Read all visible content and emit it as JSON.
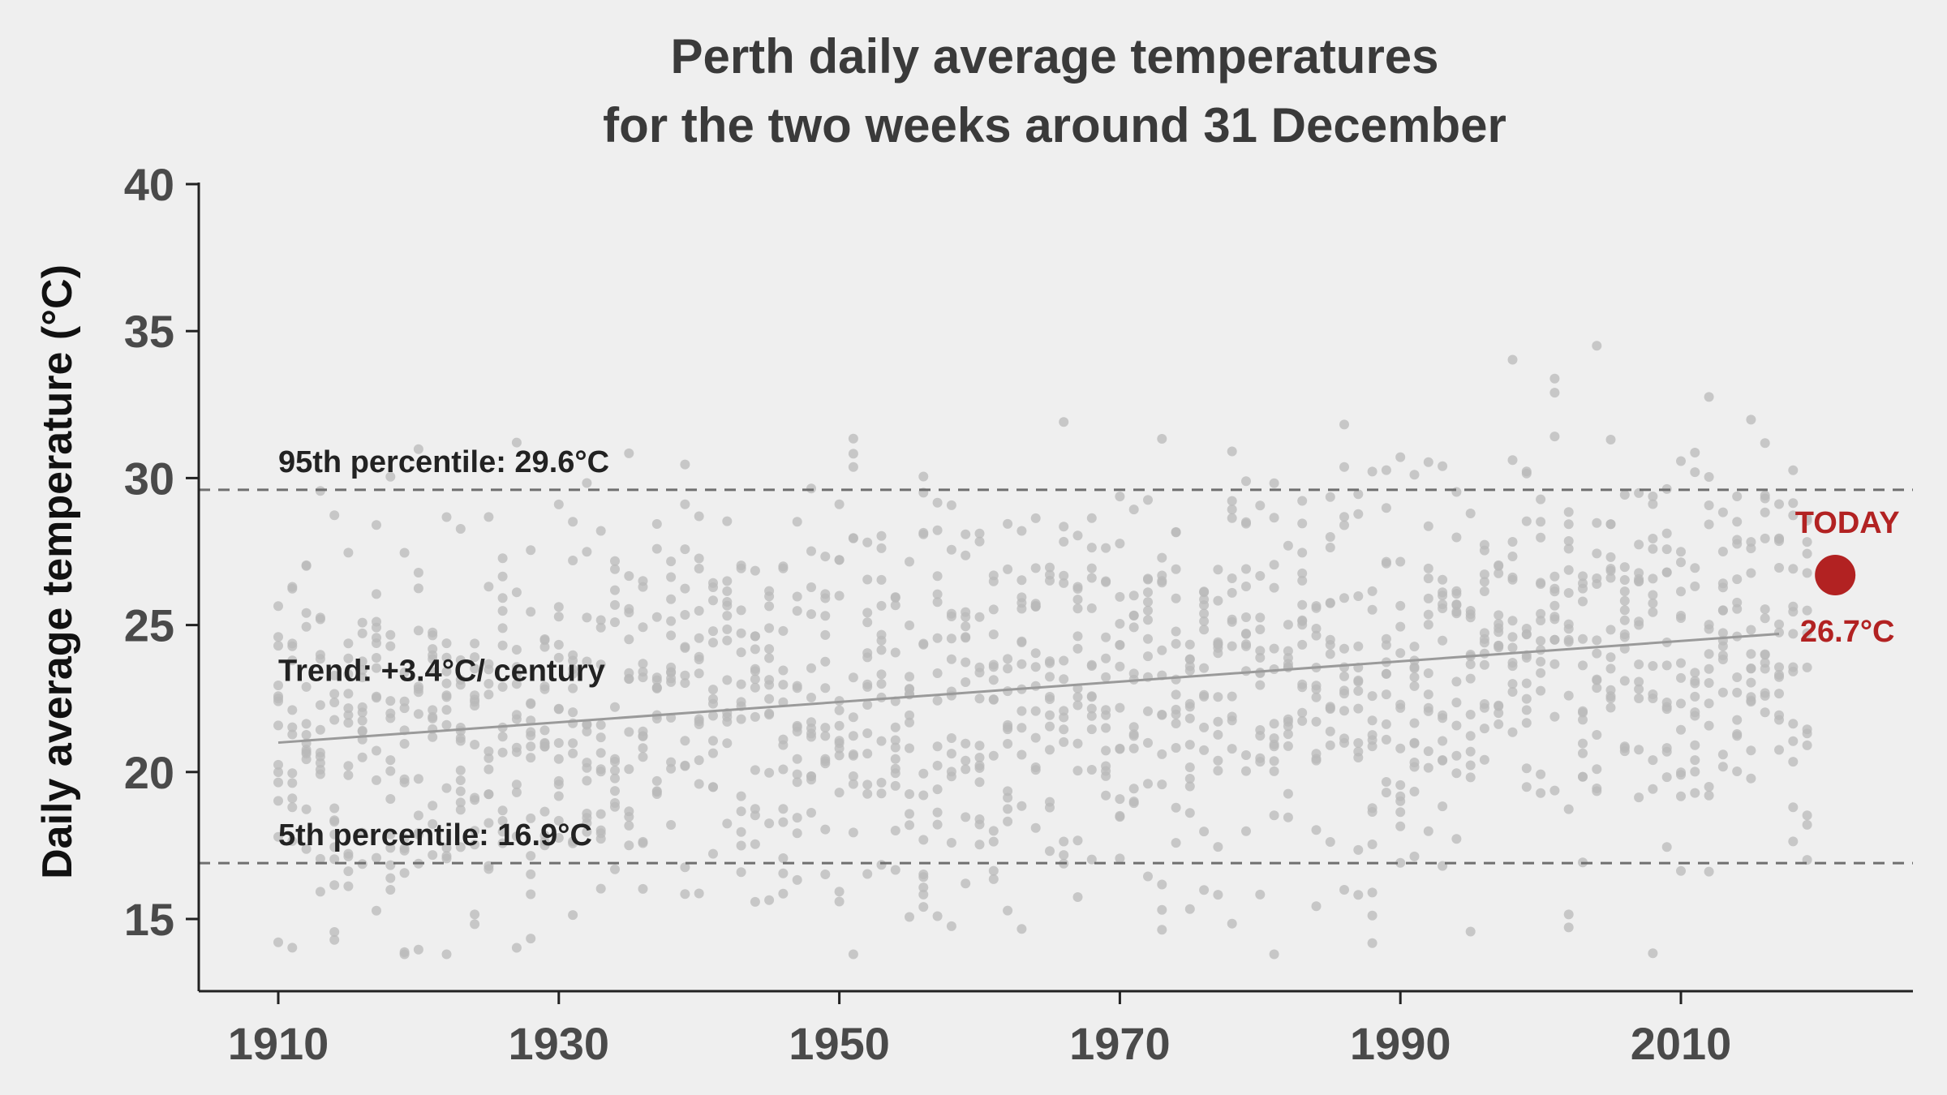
{
  "colors": {
    "background": "#efefef",
    "points": "#b9b9b9",
    "trend": "#9a9a9a",
    "percentile_line": "#6f6f6f",
    "axis": "#222222",
    "today": "#b22222"
  },
  "chart_data": {
    "type": "scatter",
    "title": [
      "Perth daily average temperatures",
      "for the two weeks around 31 December"
    ],
    "ylabel": "Daily average temperature (°C)",
    "xlabel": "",
    "xlim": [
      1905,
      2026
    ],
    "ylim": [
      12.5,
      40
    ],
    "xticks": [
      1910,
      1930,
      1950,
      1970,
      1990,
      2010
    ],
    "yticks": [
      15,
      20,
      25,
      30,
      35,
      40
    ],
    "grid": false,
    "legend": "none",
    "percentiles": [
      {
        "label": "95th percentile:  29.6°C",
        "value": 29.6
      },
      {
        "label": "5th percentile:  16.9°C",
        "value": 16.9
      }
    ],
    "trend": {
      "label": "Trend: +3.4°C/ century",
      "x": [
        1910,
        2017
      ],
      "y": [
        21.0,
        24.7
      ]
    },
    "today": {
      "label": "TODAY",
      "value_label": "26.7°C",
      "x": 2021,
      "y": 26.7
    },
    "points": {
      "x_range": [
        1910,
        2019
      ],
      "days_per_year": 14,
      "summary": "Approximately 1,500 daily values (14 days per year, 1910–2019) scattered roughly between 14°C and 34.5°C, centred on the trend line with a spread of about ±4°C."
    }
  }
}
